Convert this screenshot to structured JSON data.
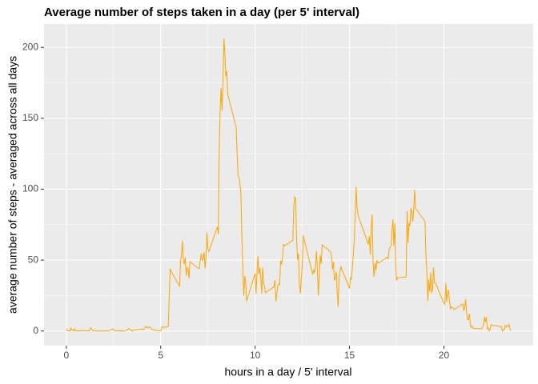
{
  "chart_data": {
    "type": "line",
    "title": "Average number of steps taken in a day (per 5' interval)",
    "xlabel": "hours in a day / 5' interval",
    "ylabel": "average number of steps - averaged across all days",
    "x": [
      0,
      0.05,
      0.1,
      0.15,
      0.2,
      0.25,
      0.3,
      0.35,
      0.4,
      0.45,
      0.5,
      0.55,
      1.0,
      1.1,
      1.2,
      1.25,
      1.3,
      1.4,
      1.5,
      1.55,
      2.0,
      2.2,
      2.5,
      2.55,
      3.0,
      3.2,
      3.3,
      3.5,
      3.55,
      4.0,
      4.1,
      4.2,
      4.3,
      4.4,
      4.5,
      4.55,
      5.0,
      5.05,
      5.1,
      5.2,
      5.3,
      5.4,
      5.5,
      5.55,
      6.0,
      6.05,
      6.1,
      6.15,
      6.2,
      6.25,
      6.3,
      6.35,
      6.4,
      6.45,
      6.5,
      6.55,
      7.0,
      7.05,
      7.1,
      7.15,
      7.2,
      7.25,
      7.3,
      7.35,
      7.4,
      7.45,
      7.5,
      7.55,
      8.0,
      8.05,
      8.1,
      8.15,
      8.2,
      8.25,
      8.3,
      8.35,
      8.4,
      8.45,
      8.5,
      8.55,
      9.0,
      9.05,
      9.1,
      9.15,
      9.2,
      9.25,
      9.3,
      9.35,
      9.4,
      9.45,
      9.5,
      9.55,
      10.0,
      10.05,
      10.1,
      10.15,
      10.2,
      10.25,
      10.3,
      10.35,
      10.4,
      10.45,
      10.5,
      10.55,
      11.0,
      11.05,
      11.1,
      11.15,
      11.2,
      11.25,
      11.3,
      11.35,
      11.4,
      11.45,
      11.5,
      11.55,
      12.0,
      12.05,
      12.1,
      12.15,
      12.2,
      12.25,
      12.3,
      12.35,
      12.4,
      12.45,
      12.5,
      12.55,
      13.0,
      13.05,
      13.1,
      13.15,
      13.2,
      13.25,
      13.3,
      13.35,
      13.4,
      13.45,
      13.5,
      13.55,
      14.0,
      14.05,
      14.1,
      14.15,
      14.2,
      14.25,
      14.3,
      14.35,
      14.4,
      14.45,
      14.5,
      14.55,
      15.0,
      15.05,
      15.1,
      15.15,
      15.2,
      15.25,
      15.3,
      15.35,
      15.4,
      15.45,
      15.5,
      15.55,
      16.0,
      16.05,
      16.1,
      16.15,
      16.2,
      16.25,
      16.3,
      16.35,
      16.4,
      16.45,
      16.5,
      16.55,
      17.0,
      17.05,
      17.1,
      17.15,
      17.2,
      17.25,
      17.3,
      17.35,
      17.4,
      17.45,
      17.5,
      17.55,
      18.0,
      18.05,
      18.1,
      18.15,
      18.2,
      18.25,
      18.3,
      18.35,
      18.4,
      18.45,
      18.5,
      18.55,
      19.0,
      19.05,
      19.1,
      19.15,
      19.2,
      19.25,
      19.3,
      19.35,
      19.4,
      19.45,
      19.5,
      19.55,
      20.0,
      20.05,
      20.1,
      20.15,
      20.2,
      20.25,
      20.3,
      20.35,
      20.4,
      20.45,
      20.5,
      20.55,
      21.0,
      21.05,
      21.1,
      21.15,
      21.2,
      21.25,
      21.3,
      21.35,
      21.4,
      21.45,
      21.5,
      21.55,
      22.0,
      22.05,
      22.1,
      22.15,
      22.2,
      22.25,
      22.3,
      22.35,
      22.4,
      22.45,
      22.5,
      22.55,
      23.0,
      23.05,
      23.1,
      23.15,
      23.2,
      23.25,
      23.3,
      23.35,
      23.4,
      23.45,
      23.5,
      23.55
    ],
    "series": [
      {
        "color": "#ffa500",
        "values": [
          1.7,
          0.3,
          0.1,
          0.2,
          0.1,
          2.1,
          0.5,
          0.9,
          0,
          1.5,
          0.3,
          0.1,
          0.3,
          0.2,
          0,
          1.1,
          2.2,
          0.2,
          0.3,
          0.1,
          0,
          0,
          1.5,
          0.2,
          0,
          0.6,
          1.6,
          0,
          0.7,
          1.2,
          0.9,
          3.3,
          2.2,
          3.0,
          1.6,
          1.0,
          0,
          2.1,
          3.1,
          2.4,
          2.8,
          3.3,
          44,
          42,
          31.5,
          49,
          53.8,
          63.5,
          50,
          47,
          52,
          39,
          44.8,
          44.2,
          37,
          49,
          44,
          44.2,
          50.5,
          54.5,
          49.9,
          50.9,
          55.7,
          44.3,
          52.3,
          69.5,
          57.8,
          56,
          73.4,
          68.2,
          129.4,
          157.5,
          171.2,
          155.4,
          177.3,
          206.2,
          195.9,
          179.6,
          183.4,
          167,
          143.5,
          124,
          109.1,
          108.1,
          103.7,
          95.9,
          66.2,
          45.2,
          24.8,
          38.8,
          35,
          21.1,
          40.6,
          26.1,
          41,
          52.7,
          40,
          44.5,
          37.4,
          26.5,
          44.7,
          34,
          31,
          27,
          31.2,
          36,
          21,
          26.1,
          31.6,
          33.1,
          32.7,
          49.8,
          47,
          51,
          61,
          60,
          63.9,
          87.5,
          94.8,
          92.8,
          63.4,
          50.2,
          54.5,
          32.4,
          26.5,
          37.7,
          45.1,
          67.3,
          42.3,
          39.9,
          43.3,
          40.9,
          46.2,
          56.4,
          42.8,
          25.1,
          39.9,
          53.5,
          47.3,
          60.8,
          55.8,
          51.9,
          43.6,
          48.7,
          35.5,
          37.5,
          41.8,
          27.3,
          17.1,
          37.5,
          41.8,
          45.2,
          30,
          37.5,
          36.5,
          44.5,
          53.5,
          63.4,
          80.8,
          101.8,
          87,
          82.5,
          79.3,
          78,
          61,
          66.8,
          53.8,
          72.5,
          82.3,
          48.2,
          38.2,
          47.8,
          43,
          50,
          48,
          48,
          52,
          51,
          57,
          59,
          60,
          71,
          78.7,
          60,
          76,
          45,
          35.6,
          37.7,
          38,
          84.6,
          62,
          76,
          74,
          86.6,
          84,
          77,
          85.3,
          99.5,
          86.6,
          85.6,
          77.3,
          52.1,
          41,
          21,
          36.4,
          27.8,
          41.4,
          26.8,
          29,
          44.8,
          34,
          34,
          19.6,
          19,
          33.6,
          20.5,
          28,
          28.5,
          21,
          15.7,
          17,
          16.6,
          16,
          15.1,
          19.1,
          14.2,
          16.5,
          22.3,
          13.2,
          8,
          7.9,
          12.2,
          5.2,
          2.4,
          3.3,
          1.9,
          1.5,
          2.6,
          4.7,
          9.8,
          6.4,
          9.8,
          1.6,
          2.3,
          0.1,
          1.3,
          4.4,
          4,
          3.2,
          2.9,
          0,
          0.8,
          1.0,
          3.9,
          2.9,
          3.8,
          3.2,
          4.5,
          1.5,
          0.2
        ]
      }
    ],
    "xlim": [
      -1.18,
      24.73
    ],
    "ylim": [
      -10.3,
      216.5
    ],
    "xticks": [
      0,
      5,
      10,
      15,
      20
    ],
    "yticks": [
      0,
      50,
      100,
      150,
      200
    ],
    "grid": true
  }
}
